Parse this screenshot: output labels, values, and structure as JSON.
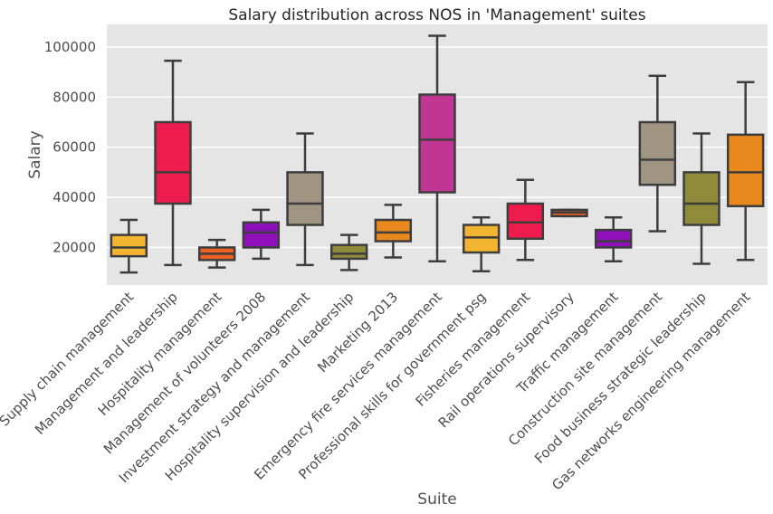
{
  "chart_data": {
    "type": "box",
    "title": "Salary distribution across NOS in 'Management' suites",
    "xlabel": "Suite",
    "ylabel": "Salary",
    "ylim": [
      5000,
      109000
    ],
    "yticks": [
      20000,
      40000,
      60000,
      80000,
      100000
    ],
    "grid": true,
    "background": "#e5e5e5",
    "categories": [
      "Supply chain management",
      "Management and leadership",
      "Hospitality management",
      "Management of volunteers 2008",
      "Investment strategy and management",
      "Hospitality supervision and leadership",
      "Marketing 2013",
      "Emergency fire services management",
      "Professional skills for government psg",
      "Fisheries management",
      "Rail operations supervisory",
      "Traffic management",
      "Construction site management",
      "Food business strategic leadership",
      "Gas networks engineering management"
    ],
    "boxes": [
      {
        "whisker_low": 10000,
        "q1": 16500,
        "median": 20000,
        "q3": 25000,
        "whisker_high": 31000,
        "color": "#f2b431"
      },
      {
        "whisker_low": 13000,
        "q1": 37500,
        "median": 50000,
        "q3": 70000,
        "whisker_high": 94500,
        "color": "#ee1c4c"
      },
      {
        "whisker_low": 12000,
        "q1": 15000,
        "median": 17500,
        "q3": 20000,
        "whisker_high": 23000,
        "color": "#eb6123"
      },
      {
        "whisker_low": 15500,
        "q1": 20000,
        "median": 26000,
        "q3": 30000,
        "whisker_high": 35000,
        "color": "#8f10bb"
      },
      {
        "whisker_low": 13000,
        "q1": 29000,
        "median": 37500,
        "q3": 50000,
        "whisker_high": 65500,
        "color": "#a09483"
      },
      {
        "whisker_low": 11000,
        "q1": 15500,
        "median": 17500,
        "q3": 21000,
        "whisker_high": 25000,
        "color": "#8f8b3a"
      },
      {
        "whisker_low": 16000,
        "q1": 22500,
        "median": 26000,
        "q3": 31000,
        "whisker_high": 37000,
        "color": "#e8881d"
      },
      {
        "whisker_low": 14500,
        "q1": 42000,
        "median": 63000,
        "q3": 81000,
        "whisker_high": 104500,
        "color": "#c23693"
      },
      {
        "whisker_low": 10500,
        "q1": 18000,
        "median": 24000,
        "q3": 29000,
        "whisker_high": 32000,
        "color": "#f2b431"
      },
      {
        "whisker_low": 15000,
        "q1": 23500,
        "median": 30000,
        "q3": 37500,
        "whisker_high": 47000,
        "color": "#ee1c4c"
      },
      {
        "whisker_low": 32500,
        "q1": 32500,
        "median": 34000,
        "q3": 35000,
        "whisker_high": 35000,
        "color": "#eb6123"
      },
      {
        "whisker_low": 14500,
        "q1": 20000,
        "median": 22500,
        "q3": 27000,
        "whisker_high": 32000,
        "color": "#8f10bb"
      },
      {
        "whisker_low": 26500,
        "q1": 45000,
        "median": 55000,
        "q3": 70000,
        "whisker_high": 88500,
        "color": "#a09483"
      },
      {
        "whisker_low": 13500,
        "q1": 29000,
        "median": 37500,
        "q3": 50000,
        "whisker_high": 65500,
        "color": "#8f8b3a"
      },
      {
        "whisker_low": 15000,
        "q1": 36500,
        "median": 50000,
        "q3": 65000,
        "whisker_high": 86000,
        "color": "#e8881d"
      }
    ]
  }
}
